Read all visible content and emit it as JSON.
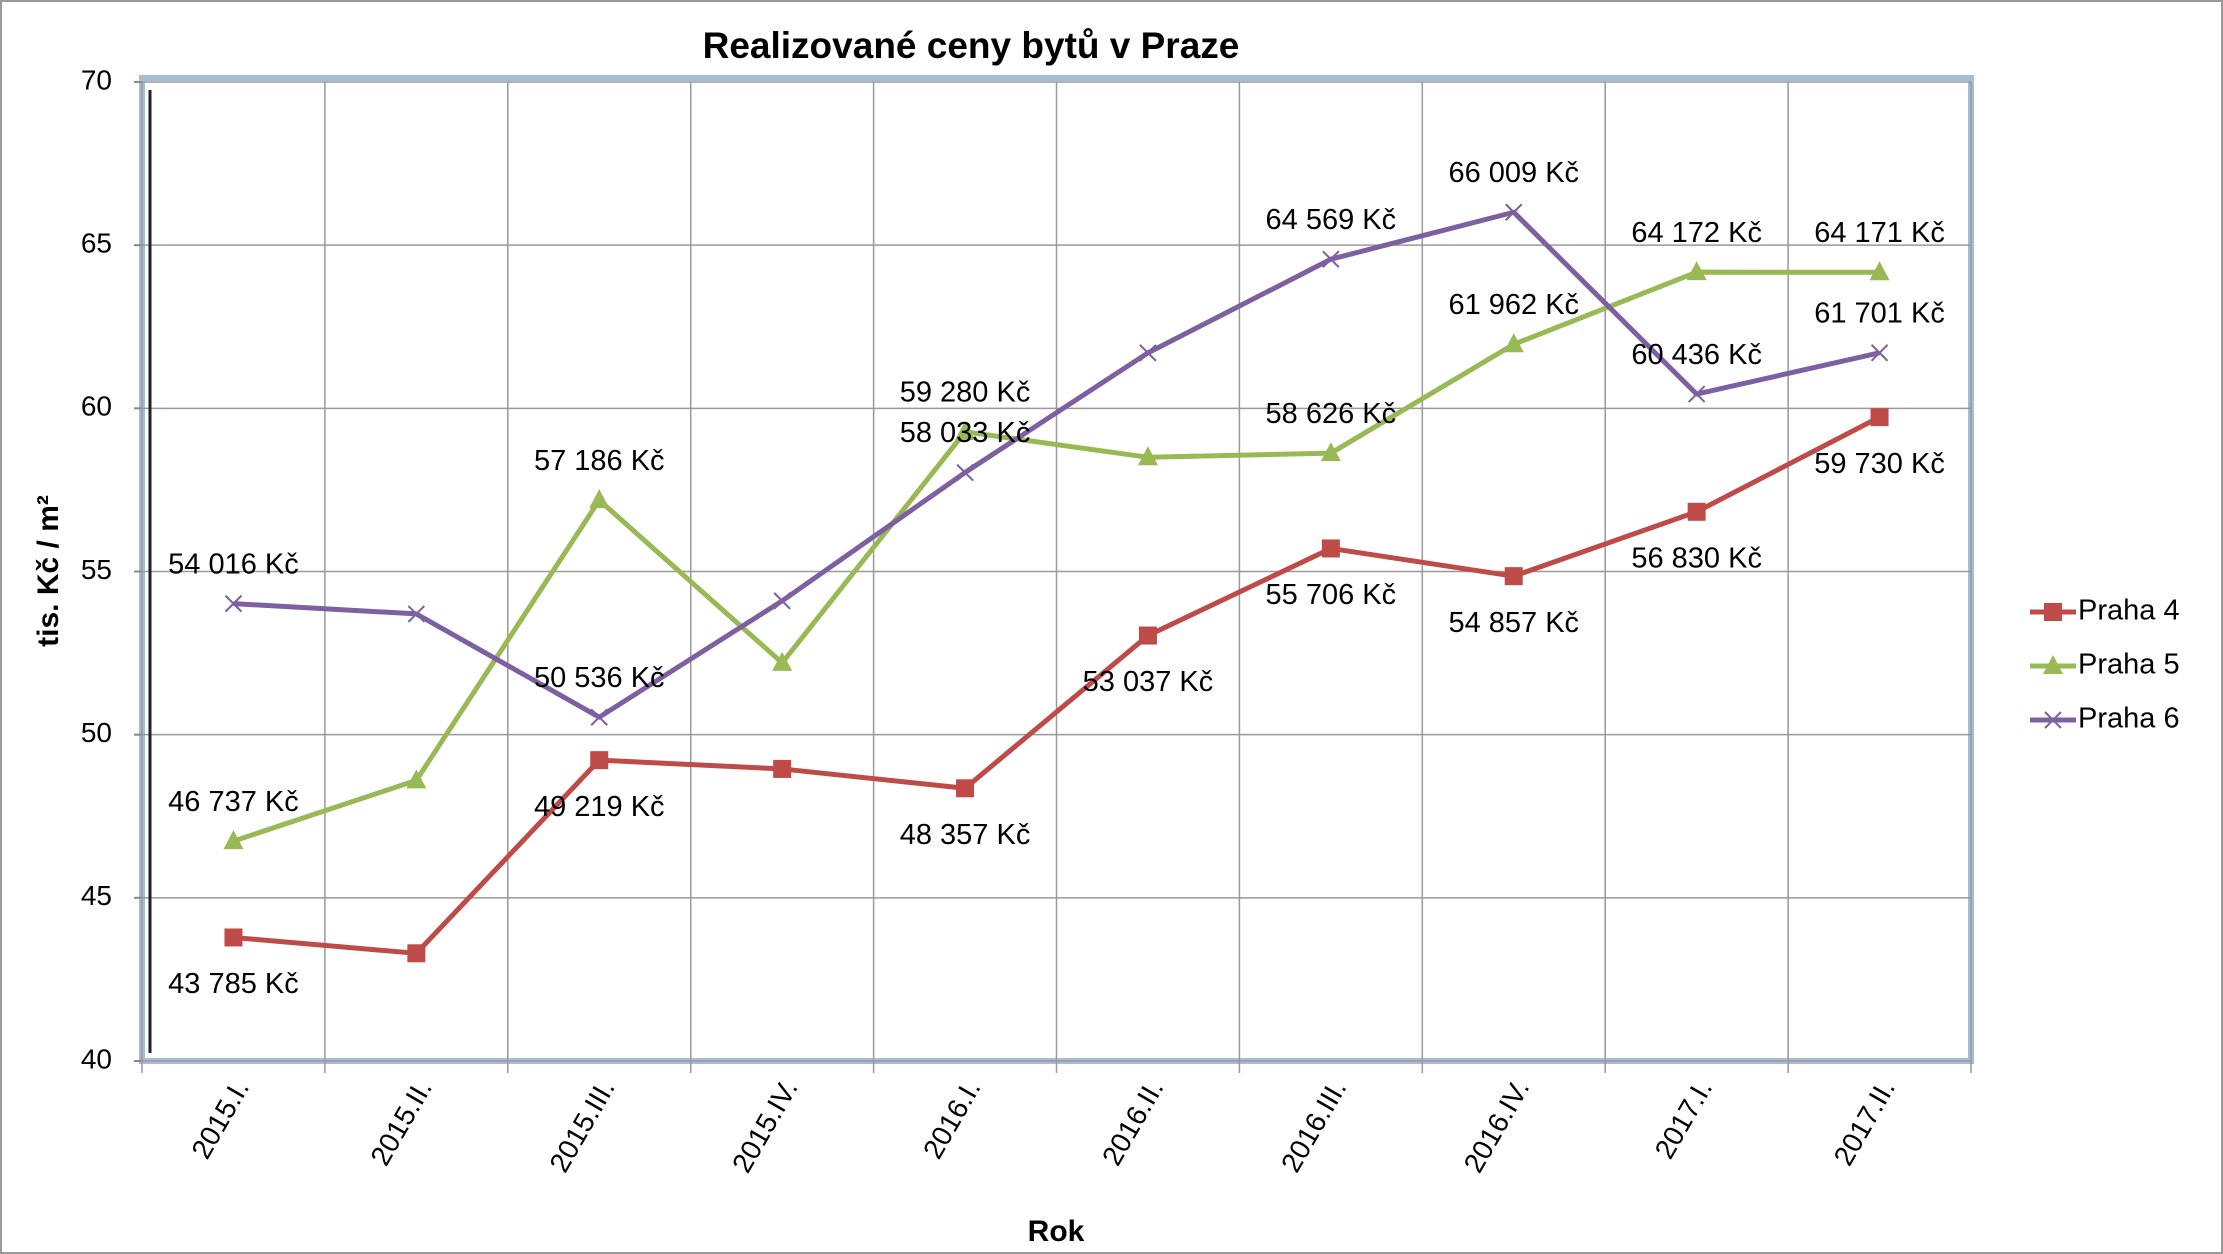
{
  "chart_data": {
    "type": "line",
    "title": "Realizované ceny bytů v Praze",
    "x_label": "Rok",
    "y_label": "tis. Kč / m²",
    "categories": [
      "2015.I.",
      "2015.II.",
      "2015.III.",
      "2015.IV.",
      "2016.I.",
      "2016.II.",
      "2016.III.",
      "2016.IV.",
      "2017.I.",
      "2017.II."
    ],
    "series": [
      {
        "name": "Praha 4",
        "color": "#be4b48",
        "marker": "square",
        "values": [
          43.785,
          43.3,
          49.219,
          48.95,
          48.357,
          53.037,
          55.706,
          54.857,
          56.83,
          59.73
        ],
        "value_labels": [
          "43 785 Kč",
          null,
          "49 219 Kč",
          null,
          "48 357 Kč",
          "53 037 Kč",
          "55 706 Kč",
          "54 857 Kč",
          "56 830 Kč",
          "59 730 Kč"
        ]
      },
      {
        "name": "Praha 5",
        "color": "#98b954",
        "marker": "triangle",
        "values": [
          46.737,
          48.6,
          57.186,
          52.2,
          59.28,
          58.5,
          58.626,
          61.962,
          64.172,
          64.171
        ],
        "value_labels": [
          "46 737 Kč",
          null,
          "57 186 Kč",
          null,
          "59 280 Kč",
          null,
          "58 626 Kč",
          "61 962 Kč",
          "64 172 Kč",
          "64 171 Kč"
        ]
      },
      {
        "name": "Praha 6",
        "color": "#7d60a0",
        "marker": "x",
        "values": [
          54.016,
          53.7,
          50.536,
          54.1,
          58.033,
          61.7,
          64.569,
          66.009,
          60.436,
          61.701
        ],
        "value_labels": [
          "54 016 Kč",
          null,
          "50 536 Kč",
          null,
          "58 033 Kč",
          null,
          "64 569 Kč",
          "66 009 Kč",
          "60 436 Kč",
          "61 701 Kč"
        ]
      }
    ],
    "ylim": [
      40,
      70
    ],
    "yticks": [
      40,
      45,
      50,
      55,
      60,
      65,
      70
    ],
    "grid": true,
    "legend": "right"
  }
}
